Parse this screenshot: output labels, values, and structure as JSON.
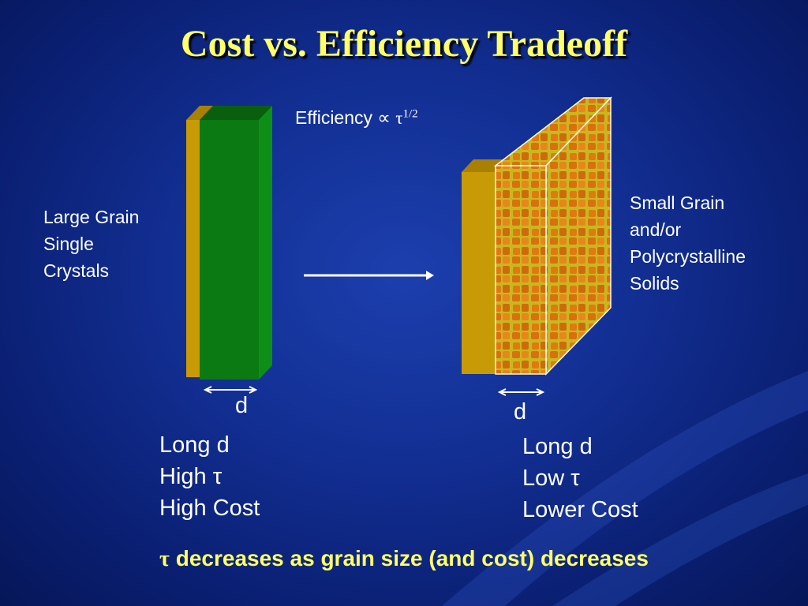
{
  "slide": {
    "title": "Cost vs. Efficiency Tradeoff",
    "efficiency": {
      "text": "Efficiency",
      "proportional_symbol": "∝",
      "tau": "τ",
      "exponent": "1/2"
    },
    "left": {
      "label_lines": [
        "Large Grain",
        "Single",
        "Crystals"
      ],
      "thickness_label": "d",
      "stats": [
        "Long d",
        "High τ",
        "High Cost"
      ],
      "colors": {
        "front": "#0b7a12",
        "side": "#0d8f17",
        "top": "#0a5f0e",
        "backing": "#c89a06"
      }
    },
    "right": {
      "label_lines": [
        "Small Grain",
        "and/or",
        "Polycrystalline",
        "Solids"
      ],
      "thickness_label": "d",
      "stats": [
        "Long d",
        "Low τ",
        "Lower Cost"
      ],
      "colors": {
        "grain": "#e07a10",
        "boundary": "#c8b820",
        "backing": "#c89a06"
      }
    },
    "bottom": {
      "tau": "τ",
      "text": " decreases as grain size (and cost) decreases"
    },
    "colors": {
      "title": "#ffff66",
      "text": "#ffffff",
      "background": "#122f93"
    }
  }
}
